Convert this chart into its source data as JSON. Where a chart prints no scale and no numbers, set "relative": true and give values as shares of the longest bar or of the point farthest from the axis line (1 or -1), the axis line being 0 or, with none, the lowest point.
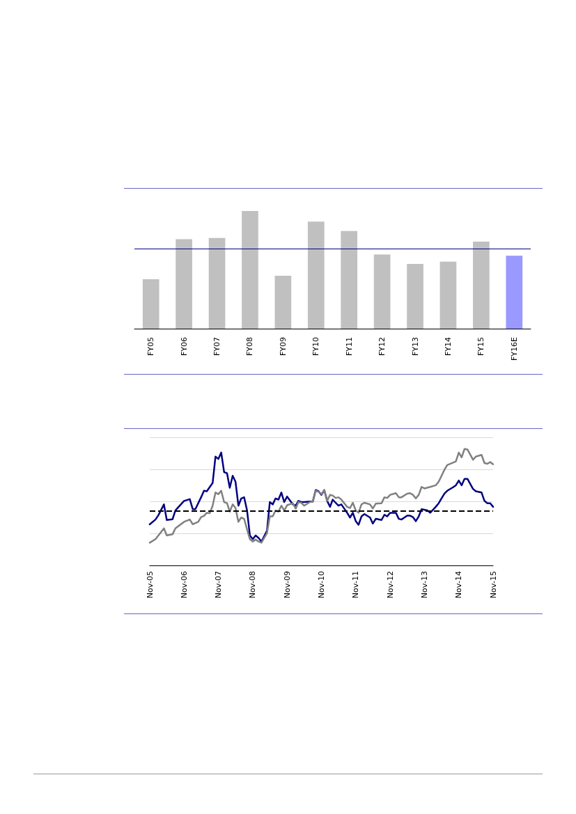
{
  "chart_data": [
    {
      "type": "bar",
      "relative": true,
      "categories": [
        "FY05",
        "FY06",
        "FY07",
        "FY08",
        "FY09",
        "FY10",
        "FY11",
        "FY12",
        "FY13",
        "FY14",
        "FY15",
        "FY16E"
      ],
      "values": [
        0.42,
        0.76,
        0.77,
        1,
        0.45,
        0.91,
        0.83,
        0.63,
        0.55,
        0.57,
        0.74,
        0.62
      ],
      "colors": [
        "#c0c0c0",
        "#c0c0c0",
        "#c0c0c0",
        "#c0c0c0",
        "#c0c0c0",
        "#c0c0c0",
        "#c0c0c0",
        "#c0c0c0",
        "#c0c0c0",
        "#c0c0c0",
        "#c0c0c0",
        "#9999ff"
      ],
      "ref_lines": [
        {
          "axis": "y",
          "value": 0.68,
          "color": "#000080",
          "line_style": "solid"
        }
      ]
    },
    {
      "type": "line",
      "relative": true,
      "grid": "y",
      "marker": "none",
      "xlim": [
        "2005-11",
        "2015-11"
      ],
      "xticks": [
        {
          "value": "2005-11",
          "label": "Nov-05"
        },
        {
          "value": "2006-11",
          "label": "Nov-06"
        },
        {
          "value": "2007-11",
          "label": "Nov-07"
        },
        {
          "value": "2008-11",
          "label": "Nov-08"
        },
        {
          "value": "2009-11",
          "label": "Nov-09"
        },
        {
          "value": "2010-11",
          "label": "Nov-10"
        },
        {
          "value": "2011-11",
          "label": "Nov-11"
        },
        {
          "value": "2012-11",
          "label": "Nov-12"
        },
        {
          "value": "2013-11",
          "label": "Nov-13"
        },
        {
          "value": "2014-11",
          "label": "Nov-14"
        },
        {
          "value": "2015-11",
          "label": "Nov-15"
        }
      ],
      "series": [
        {
          "color": "#000080",
          "x": [
            "2005-11",
            "2006-01",
            "2006-02",
            "2006-04",
            "2006-05",
            "2006-07",
            "2006-08",
            "2006-11",
            "2007-01",
            "2007-02",
            "2007-03",
            "2007-05",
            "2007-06",
            "2007-07",
            "2007-09",
            "2007-10",
            "2007-11",
            "2007-12",
            "2008-01",
            "2008-02",
            "2008-03",
            "2008-04",
            "2008-05",
            "2008-06",
            "2008-07",
            "2008-08",
            "2008-09",
            "2008-10",
            "2008-11",
            "2008-12",
            "2009-01",
            "2009-02",
            "2009-04",
            "2009-05",
            "2009-06",
            "2009-07",
            "2009-08",
            "2009-09",
            "2009-10",
            "2009-11",
            "2010-01",
            "2010-02",
            "2010-03",
            "2010-04",
            "2010-05",
            "2010-07",
            "2010-08",
            "2010-09",
            "2010-10",
            "2010-11",
            "2010-12",
            "2011-01",
            "2011-02",
            "2011-03",
            "2011-04",
            "2011-05",
            "2011-06",
            "2011-08",
            "2011-09",
            "2011-10",
            "2011-11",
            "2011-12",
            "2012-01",
            "2012-02",
            "2012-04",
            "2012-05",
            "2012-06",
            "2012-08",
            "2012-09",
            "2012-10",
            "2012-11",
            "2013-01",
            "2013-02",
            "2013-03",
            "2013-05",
            "2013-06",
            "2013-07",
            "2013-08",
            "2013-09",
            "2013-10",
            "2013-12",
            "2014-01",
            "2014-03",
            "2014-04",
            "2014-06",
            "2014-07",
            "2014-09",
            "2014-10",
            "2014-11",
            "2014-12",
            "2015-01",
            "2015-02",
            "2015-04",
            "2015-05",
            "2015-07",
            "2015-08",
            "2015-09",
            "2015-10",
            "2015-11"
          ],
          "values": [
            0.353,
            0.394,
            0.431,
            0.524,
            0.39,
            0.396,
            0.472,
            0.554,
            0.569,
            0.483,
            0.483,
            0.585,
            0.641,
            0.637,
            0.708,
            0.934,
            0.914,
            0.969,
            0.801,
            0.791,
            0.667,
            0.77,
            0.719,
            0.513,
            0.575,
            0.585,
            0.472,
            0.257,
            0.226,
            0.257,
            0.236,
            0.205,
            0.298,
            0.544,
            0.524,
            0.575,
            0.565,
            0.626,
            0.544,
            0.591,
            0.524,
            0.513,
            0.554,
            0.544,
            0.544,
            0.548,
            0.548,
            0.647,
            0.637,
            0.606,
            0.647,
            0.554,
            0.503,
            0.565,
            0.538,
            0.513,
            0.524,
            0.452,
            0.411,
            0.452,
            0.38,
            0.349,
            0.421,
            0.441,
            0.411,
            0.359,
            0.4,
            0.39,
            0.435,
            0.421,
            0.452,
            0.452,
            0.4,
            0.394,
            0.427,
            0.427,
            0.415,
            0.38,
            0.421,
            0.483,
            0.472,
            0.452,
            0.503,
            0.534,
            0.616,
            0.641,
            0.671,
            0.688,
            0.729,
            0.688,
            0.743,
            0.743,
            0.657,
            0.637,
            0.626,
            0.554,
            0.534,
            0.534,
            0.503
          ]
        },
        {
          "color": "#808080",
          "x": [
            "2005-11",
            "2006-01",
            "2006-02",
            "2006-04",
            "2006-05",
            "2006-07",
            "2006-08",
            "2006-11",
            "2007-01",
            "2007-02",
            "2007-04",
            "2007-05",
            "2007-06",
            "2007-07",
            "2007-08",
            "2007-09",
            "2007-10",
            "2007-11",
            "2007-12",
            "2008-01",
            "2008-02",
            "2008-03",
            "2008-04",
            "2008-05",
            "2008-06",
            "2008-07",
            "2008-08",
            "2008-09",
            "2008-10",
            "2008-11",
            "2008-12",
            "2009-01",
            "2009-02",
            "2009-04",
            "2009-05",
            "2009-06",
            "2009-07",
            "2009-08",
            "2009-09",
            "2009-10",
            "2009-11",
            "2010-01",
            "2010-02",
            "2010-03",
            "2010-04",
            "2010-05",
            "2010-07",
            "2010-08",
            "2010-09",
            "2010-10",
            "2010-11",
            "2010-12",
            "2011-01",
            "2011-02",
            "2011-03",
            "2011-04",
            "2011-05",
            "2011-06",
            "2011-08",
            "2011-09",
            "2011-10",
            "2011-11",
            "2011-12",
            "2012-01",
            "2012-02",
            "2012-04",
            "2012-05",
            "2012-06",
            "2012-08",
            "2012-09",
            "2012-10",
            "2012-11",
            "2013-01",
            "2013-02",
            "2013-03",
            "2013-05",
            "2013-06",
            "2013-07",
            "2013-08",
            "2013-09",
            "2013-10",
            "2013-11",
            "2014-01",
            "2014-03",
            "2014-04",
            "2014-06",
            "2014-07",
            "2014-09",
            "2014-10",
            "2014-11",
            "2014-12",
            "2015-01",
            "2015-02",
            "2015-04",
            "2015-05",
            "2015-07",
            "2015-08",
            "2015-09",
            "2015-10",
            "2015-11"
          ],
          "values": [
            0.195,
            0.226,
            0.257,
            0.318,
            0.257,
            0.267,
            0.318,
            0.374,
            0.394,
            0.353,
            0.374,
            0.415,
            0.425,
            0.452,
            0.448,
            0.513,
            0.626,
            0.612,
            0.641,
            0.544,
            0.534,
            0.462,
            0.524,
            0.493,
            0.374,
            0.411,
            0.4,
            0.308,
            0.226,
            0.205,
            0.222,
            0.205,
            0.195,
            0.277,
            0.421,
            0.421,
            0.472,
            0.462,
            0.513,
            0.472,
            0.517,
            0.534,
            0.487,
            0.544,
            0.538,
            0.513,
            0.544,
            0.548,
            0.641,
            0.632,
            0.612,
            0.647,
            0.554,
            0.606,
            0.6,
            0.579,
            0.585,
            0.565,
            0.503,
            0.493,
            0.538,
            0.472,
            0.452,
            0.524,
            0.538,
            0.524,
            0.489,
            0.53,
            0.534,
            0.585,
            0.579,
            0.606,
            0.62,
            0.585,
            0.585,
            0.616,
            0.62,
            0.606,
            0.575,
            0.606,
            0.674,
            0.661,
            0.674,
            0.688,
            0.719,
            0.821,
            0.862,
            0.883,
            0.893,
            0.969,
            0.928,
            1,
            0.996,
            0.908,
            0.934,
            0.949,
            0.879,
            0.873,
            0.887,
            0.869
          ]
        }
      ],
      "ref_lines": [
        {
          "axis": "y",
          "value": 0.47,
          "color": "#000000",
          "line_style": "dashed"
        }
      ]
    }
  ]
}
